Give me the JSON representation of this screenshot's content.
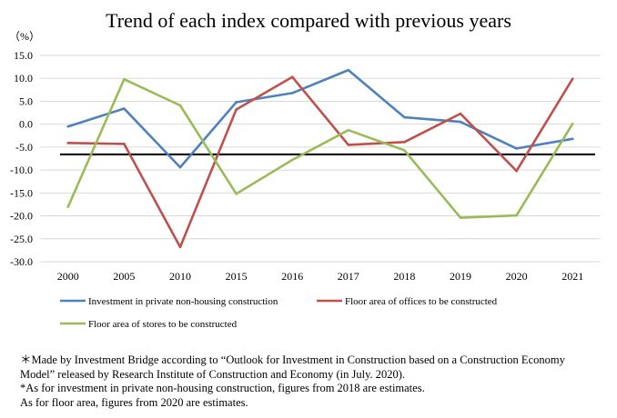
{
  "chart_data": {
    "type": "line",
    "title": "Trend of each index compared with previous years",
    "ylabel": "（%）",
    "xlabel": "",
    "categories": [
      "2000",
      "2005",
      "2010",
      "2015",
      "2016",
      "2017",
      "2018",
      "2019",
      "2020",
      "2021"
    ],
    "ylim": [
      -30.0,
      15.0
    ],
    "yticks": [
      "15.0",
      "10.0",
      "5.0",
      "0.0",
      "-5.0",
      "-10.0",
      "-15.0",
      "-20.0",
      "-25.0",
      "-30.0"
    ],
    "grid": true,
    "legend_position": "bottom",
    "reference_line": -6.6,
    "series": [
      {
        "name": "Investment in private non-housing construction",
        "color": "#4f81bd",
        "values": [
          -0.5,
          3.4,
          -9.4,
          4.8,
          6.8,
          11.8,
          1.5,
          0.5,
          -5.3,
          -3.2
        ]
      },
      {
        "name": "Floor area of offices to be constructed",
        "color": "#c0504d",
        "values": [
          -4.1,
          -4.3,
          -26.8,
          3.2,
          10.3,
          -4.5,
          -3.9,
          2.3,
          -10.2,
          9.9
        ]
      },
      {
        "name": "Floor area of stores to be constructed",
        "color": "#9bbb59",
        "values": [
          -18.0,
          9.8,
          4.1,
          -15.2,
          -7.8,
          -1.3,
          -5.7,
          -20.4,
          -19.9,
          0.1
        ]
      }
    ]
  },
  "notes": [
    "＊Made by Investment Bridge according to “Outlook for Investment in Construction based on a Construction Economy",
    "Model” released by Research Institute of Construction and Economy (in July. 2020).",
    "*As for investment in private non-housing construction, figures from 2018 are estimates.",
    "As for floor area, figures from 2020 are estimates."
  ]
}
